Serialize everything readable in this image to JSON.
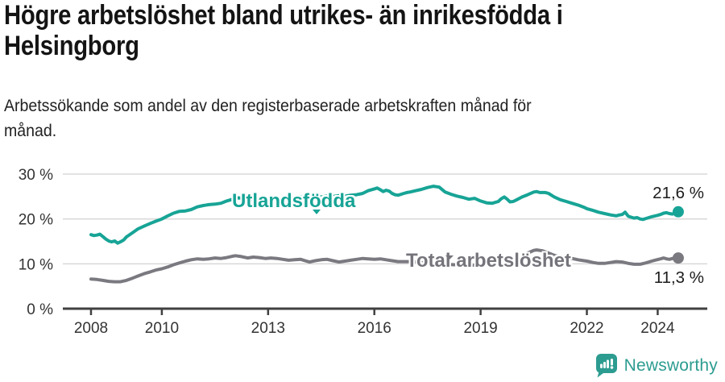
{
  "header": {
    "title": "Högre arbetslöshet bland utrikes- än inrikesfödda i Helsingborg",
    "title_lines": [
      "Högre arbetslöshet bland utrikes- än inrikesfödda i",
      "Helsingborg"
    ],
    "subtitle": "Arbetssökande som andel av den registerbaserade arbetskraften månad för månad.",
    "subtitle_lines": [
      "Arbetssökande som andel av den registerbaserade arbetskraften månad för",
      "månad."
    ]
  },
  "chart_data": {
    "type": "line",
    "unit": "%",
    "title": "Högre arbetslöshet bland utrikes- än inrikesfödda i Helsingborg",
    "xlabel": "",
    "ylabel": "Arbetssökande som andel av den registerbaserade arbetskraften",
    "grid": "horizontal",
    "legend_position": "inline-labels",
    "xlim": [
      2007.25,
      2025.4
    ],
    "ylim": [
      0,
      34.5
    ],
    "x_ticks": [
      2008,
      2010,
      2013,
      2016,
      2019,
      2022,
      2024
    ],
    "y_ticks": [
      0,
      10,
      20,
      30
    ],
    "y_tick_suffix": " %",
    "series": [
      {
        "name": "Utlandsfödda",
        "color": "#17a496",
        "end_value": 21.6,
        "end_label": "21,6 %",
        "end_label_position": "above",
        "points": [
          [
            2008.0,
            16.5
          ],
          [
            2008.08,
            16.3
          ],
          [
            2008.17,
            16.4
          ],
          [
            2008.25,
            16.6
          ],
          [
            2008.33,
            16.1
          ],
          [
            2008.42,
            15.5
          ],
          [
            2008.5,
            15.1
          ],
          [
            2008.58,
            14.9
          ],
          [
            2008.67,
            15.1
          ],
          [
            2008.75,
            14.6
          ],
          [
            2008.83,
            14.9
          ],
          [
            2008.92,
            15.3
          ],
          [
            2009.0,
            16.0
          ],
          [
            2009.17,
            16.9
          ],
          [
            2009.33,
            17.8
          ],
          [
            2009.5,
            18.4
          ],
          [
            2009.67,
            19.0
          ],
          [
            2009.83,
            19.5
          ],
          [
            2010.0,
            20.0
          ],
          [
            2010.17,
            20.7
          ],
          [
            2010.33,
            21.3
          ],
          [
            2010.5,
            21.7
          ],
          [
            2010.67,
            21.8
          ],
          [
            2010.83,
            22.1
          ],
          [
            2011.0,
            22.7
          ],
          [
            2011.17,
            23.0
          ],
          [
            2011.33,
            23.2
          ],
          [
            2011.5,
            23.3
          ],
          [
            2011.67,
            23.5
          ],
          [
            2011.83,
            24.0
          ],
          [
            2012.0,
            24.4
          ],
          [
            2012.17,
            24.7
          ],
          [
            2012.33,
            24.5
          ],
          [
            2012.5,
            24.3
          ],
          [
            2012.67,
            24.4
          ],
          [
            2012.83,
            24.5
          ],
          [
            2013.0,
            24.5
          ],
          [
            2013.17,
            24.7
          ],
          [
            2013.33,
            24.6
          ],
          [
            2013.5,
            24.5
          ],
          [
            2013.67,
            24.7
          ],
          [
            2013.83,
            24.9
          ],
          [
            2014.0,
            25.0
          ],
          [
            2014.17,
            24.8
          ],
          [
            2014.33,
            24.7
          ],
          [
            2014.5,
            24.9
          ],
          [
            2014.67,
            25.1
          ],
          [
            2014.83,
            25.0
          ],
          [
            2015.0,
            25.2
          ],
          [
            2015.17,
            25.1
          ],
          [
            2015.33,
            25.3
          ],
          [
            2015.5,
            25.4
          ],
          [
            2015.67,
            25.7
          ],
          [
            2015.83,
            26.3
          ],
          [
            2016.0,
            26.7
          ],
          [
            2016.08,
            26.9
          ],
          [
            2016.17,
            26.5
          ],
          [
            2016.25,
            26.1
          ],
          [
            2016.33,
            26.4
          ],
          [
            2016.42,
            26.2
          ],
          [
            2016.5,
            25.7
          ],
          [
            2016.58,
            25.4
          ],
          [
            2016.67,
            25.3
          ],
          [
            2016.75,
            25.5
          ],
          [
            2016.83,
            25.7
          ],
          [
            2016.92,
            25.9
          ],
          [
            2017.0,
            26.0
          ],
          [
            2017.17,
            26.3
          ],
          [
            2017.33,
            26.6
          ],
          [
            2017.5,
            27.0
          ],
          [
            2017.67,
            27.3
          ],
          [
            2017.83,
            27.1
          ],
          [
            2018.0,
            26.0
          ],
          [
            2018.17,
            25.5
          ],
          [
            2018.33,
            25.1
          ],
          [
            2018.5,
            24.8
          ],
          [
            2018.67,
            24.4
          ],
          [
            2018.83,
            24.6
          ],
          [
            2019.0,
            24.0
          ],
          [
            2019.17,
            23.6
          ],
          [
            2019.33,
            23.5
          ],
          [
            2019.5,
            23.9
          ],
          [
            2019.58,
            24.5
          ],
          [
            2019.67,
            24.9
          ],
          [
            2019.75,
            24.4
          ],
          [
            2019.83,
            23.8
          ],
          [
            2019.92,
            23.9
          ],
          [
            2020.0,
            24.2
          ],
          [
            2020.17,
            24.9
          ],
          [
            2020.33,
            25.4
          ],
          [
            2020.5,
            26.0
          ],
          [
            2020.58,
            26.1
          ],
          [
            2020.67,
            25.9
          ],
          [
            2020.83,
            25.9
          ],
          [
            2020.92,
            25.7
          ],
          [
            2021.0,
            25.3
          ],
          [
            2021.08,
            24.9
          ],
          [
            2021.25,
            24.3
          ],
          [
            2021.42,
            23.9
          ],
          [
            2021.58,
            23.5
          ],
          [
            2021.75,
            23.1
          ],
          [
            2021.92,
            22.6
          ],
          [
            2022.0,
            22.3
          ],
          [
            2022.17,
            21.9
          ],
          [
            2022.33,
            21.5
          ],
          [
            2022.5,
            21.2
          ],
          [
            2022.67,
            20.9
          ],
          [
            2022.83,
            20.7
          ],
          [
            2022.92,
            20.9
          ],
          [
            2023.0,
            21.0
          ],
          [
            2023.08,
            21.5
          ],
          [
            2023.17,
            20.6
          ],
          [
            2023.33,
            20.2
          ],
          [
            2023.42,
            20.3
          ],
          [
            2023.5,
            20.0
          ],
          [
            2023.58,
            19.9
          ],
          [
            2023.67,
            20.1
          ],
          [
            2023.83,
            20.5
          ],
          [
            2024.0,
            20.8
          ],
          [
            2024.08,
            21.0
          ],
          [
            2024.17,
            21.3
          ],
          [
            2024.25,
            21.4
          ],
          [
            2024.33,
            21.2
          ],
          [
            2024.42,
            21.1
          ],
          [
            2024.5,
            21.4
          ],
          [
            2024.58,
            21.6
          ]
        ]
      },
      {
        "name": "Total arbetslöshet",
        "color": "#7b7980",
        "end_value": 11.3,
        "end_label": "11,3 %",
        "end_label_position": "below",
        "points": [
          [
            2008.0,
            6.6
          ],
          [
            2008.17,
            6.5
          ],
          [
            2008.33,
            6.3
          ],
          [
            2008.5,
            6.1
          ],
          [
            2008.67,
            6.0
          ],
          [
            2008.83,
            6.0
          ],
          [
            2009.0,
            6.3
          ],
          [
            2009.17,
            6.8
          ],
          [
            2009.33,
            7.3
          ],
          [
            2009.5,
            7.8
          ],
          [
            2009.67,
            8.2
          ],
          [
            2009.83,
            8.6
          ],
          [
            2010.0,
            8.9
          ],
          [
            2010.17,
            9.3
          ],
          [
            2010.33,
            9.8
          ],
          [
            2010.5,
            10.2
          ],
          [
            2010.67,
            10.6
          ],
          [
            2010.83,
            10.9
          ],
          [
            2011.0,
            11.1
          ],
          [
            2011.17,
            11.0
          ],
          [
            2011.33,
            11.1
          ],
          [
            2011.5,
            11.3
          ],
          [
            2011.67,
            11.2
          ],
          [
            2011.83,
            11.4
          ],
          [
            2012.0,
            11.7
          ],
          [
            2012.08,
            11.8
          ],
          [
            2012.25,
            11.6
          ],
          [
            2012.42,
            11.3
          ],
          [
            2012.58,
            11.5
          ],
          [
            2012.75,
            11.4
          ],
          [
            2012.92,
            11.2
          ],
          [
            2013.08,
            11.3
          ],
          [
            2013.25,
            11.2
          ],
          [
            2013.42,
            11.0
          ],
          [
            2013.58,
            10.8
          ],
          [
            2013.75,
            10.9
          ],
          [
            2013.92,
            11.0
          ],
          [
            2014.08,
            10.6
          ],
          [
            2014.17,
            10.4
          ],
          [
            2014.33,
            10.7
          ],
          [
            2014.5,
            10.9
          ],
          [
            2014.67,
            11.0
          ],
          [
            2014.83,
            10.7
          ],
          [
            2015.0,
            10.4
          ],
          [
            2015.17,
            10.6
          ],
          [
            2015.33,
            10.8
          ],
          [
            2015.5,
            11.0
          ],
          [
            2015.67,
            11.2
          ],
          [
            2015.83,
            11.1
          ],
          [
            2016.0,
            11.0
          ],
          [
            2016.17,
            11.1
          ],
          [
            2016.33,
            10.9
          ],
          [
            2016.5,
            10.7
          ],
          [
            2016.67,
            10.5
          ],
          [
            2016.83,
            10.5
          ],
          [
            2017.0,
            10.5
          ],
          [
            2017.17,
            10.4
          ],
          [
            2017.33,
            10.3
          ],
          [
            2017.5,
            10.2
          ],
          [
            2017.67,
            10.1
          ],
          [
            2017.83,
            10.0
          ],
          [
            2018.0,
            9.9
          ],
          [
            2018.25,
            9.8
          ],
          [
            2018.5,
            9.7
          ],
          [
            2018.75,
            9.7
          ],
          [
            2019.0,
            9.7
          ],
          [
            2019.25,
            9.8
          ],
          [
            2019.5,
            9.9
          ],
          [
            2019.75,
            10.1
          ],
          [
            2020.0,
            10.6
          ],
          [
            2020.17,
            11.5
          ],
          [
            2020.33,
            12.4
          ],
          [
            2020.5,
            13.0
          ],
          [
            2020.58,
            13.1
          ],
          [
            2020.75,
            12.9
          ],
          [
            2020.92,
            12.4
          ],
          [
            2021.08,
            11.9
          ],
          [
            2021.25,
            11.5
          ],
          [
            2021.42,
            11.3
          ],
          [
            2021.58,
            11.2
          ],
          [
            2021.75,
            10.9
          ],
          [
            2021.92,
            10.7
          ],
          [
            2022.0,
            10.6
          ],
          [
            2022.17,
            10.3
          ],
          [
            2022.33,
            10.1
          ],
          [
            2022.5,
            10.1
          ],
          [
            2022.67,
            10.3
          ],
          [
            2022.83,
            10.5
          ],
          [
            2023.0,
            10.4
          ],
          [
            2023.17,
            10.1
          ],
          [
            2023.33,
            9.9
          ],
          [
            2023.5,
            9.9
          ],
          [
            2023.67,
            10.2
          ],
          [
            2023.83,
            10.6
          ],
          [
            2023.92,
            10.8
          ],
          [
            2024.08,
            11.1
          ],
          [
            2024.17,
            11.3
          ],
          [
            2024.25,
            11.1
          ],
          [
            2024.33,
            11.0
          ],
          [
            2024.42,
            11.2
          ],
          [
            2024.58,
            11.3
          ]
        ]
      }
    ]
  },
  "branding": {
    "logo_text": "Newsworthy",
    "logo_icon": "speech-bubble-bar-chart-icon",
    "logo_color": "#2d9c90"
  },
  "colors": {
    "accent_teal": "#17a496",
    "line_gray": "#7b7980",
    "gridline": "#d8d8d8",
    "axis": "#404040",
    "tick_text": "#333333",
    "annotation_text": "#1c1c1c",
    "title_text": "#141414"
  }
}
